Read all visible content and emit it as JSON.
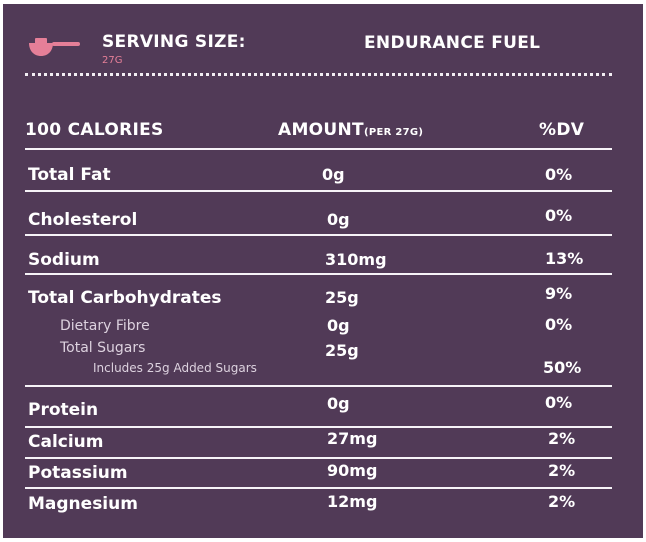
{
  "header": {
    "serving_label": "SERVING SIZE:",
    "serving_value": "27G",
    "product_name": "ENDURANCE FUEL",
    "scoop_icon": "measuring-scoop-icon",
    "accent_color": "#e57f98",
    "background_color": "#513a57"
  },
  "table_header": {
    "calories": "100 CALORIES",
    "amount": "AMOUNT",
    "amount_note": "(PER 27G)",
    "dv": "%DV"
  },
  "nutrients": {
    "total_fat": {
      "label": "Total Fat",
      "amount": "0g",
      "dv": "0%"
    },
    "cholesterol": {
      "label": "Cholesterol",
      "amount": "0g",
      "dv": "0%"
    },
    "sodium": {
      "label": "Sodium",
      "amount": "310mg",
      "dv": "13%"
    },
    "total_carbohydrates": {
      "label": "Total Carbohydrates",
      "amount": "25g",
      "dv": "9%"
    },
    "dietary_fibre": {
      "label": "Dietary Fibre",
      "amount": "0g",
      "dv": "0%"
    },
    "total_sugars": {
      "label": "Total Sugars",
      "amount": "25g"
    },
    "added_sugars": {
      "label": "Includes 25g Added Sugars",
      "dv": "50%"
    },
    "protein": {
      "label": "Protein",
      "amount": "0g",
      "dv": "0%"
    },
    "calcium": {
      "label": "Calcium",
      "amount": "27mg",
      "dv": "2%"
    },
    "potassium": {
      "label": "Potassium",
      "amount": "90mg",
      "dv": "2%"
    },
    "magnesium": {
      "label": "Magnesium",
      "amount": "12mg",
      "dv": "2%"
    }
  }
}
